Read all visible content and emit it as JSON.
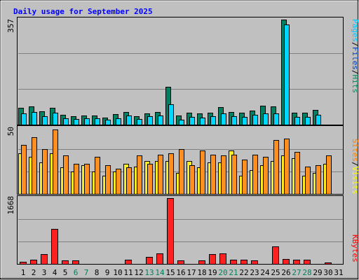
{
  "chart_data": {
    "type": "bar",
    "title": "Daily usage for September 2025",
    "days": [
      "1",
      "2",
      "3",
      "4",
      "5",
      "6",
      "7",
      "8",
      "9",
      "10",
      "11",
      "12",
      "13",
      "14",
      "15",
      "16",
      "17",
      "18",
      "19",
      "20",
      "21",
      "22",
      "23",
      "24",
      "25",
      "26",
      "27",
      "28",
      "29",
      "30",
      "31"
    ],
    "weekend_days": [
      "6",
      "7",
      "13",
      "14",
      "20",
      "21",
      "27",
      "28"
    ],
    "weekday_color": "#000000",
    "weekend_color": "#00805C",
    "panels": [
      {
        "id": "hits-panel",
        "max_label": "357",
        "ylim": [
          0,
          357
        ],
        "legend": [
          {
            "name": "Pages",
            "color": "#00C8FF"
          },
          {
            "name": "Files",
            "color": "#0040C0"
          },
          {
            "name": "Hits",
            "color": "#009060"
          }
        ],
        "series": [
          {
            "name": "Hits",
            "color": "#008060",
            "values": [
              57,
              62,
              46,
              58,
              33,
              28,
              32,
              30,
              23,
              35,
              42,
              29,
              38,
              43,
              128,
              30,
              40,
              39,
              40,
              60,
              42,
              41,
              47,
              65,
              63,
              357,
              40,
              40,
              50,
              0,
              0
            ]
          },
          {
            "name": "Files",
            "color": "#00D8FF",
            "values": [
              37,
              44,
              28,
              40,
              22,
              20,
              22,
              22,
              17,
              22,
              30,
              20,
              28,
              30,
              70,
              16,
              27,
              24,
              28,
              37,
              29,
              25,
              34,
              38,
              37,
              340,
              25,
              26,
              34,
              0,
              0
            ]
          }
        ]
      },
      {
        "id": "visits-panel",
        "max_label": "50",
        "ylim": [
          0,
          50
        ],
        "legend": [
          {
            "name": "Sites",
            "color": "#FF8000"
          },
          {
            "name": "Visits",
            "color": "#FFFF00"
          }
        ],
        "series": [
          {
            "name": "Sites",
            "color": "#FFEE20",
            "values": [
              31,
              28,
              24,
              31,
              20,
              17,
              22,
              17,
              14,
              17,
              23,
              21,
              25,
              25,
              25,
              16,
              25,
              20,
              24,
              24,
              33,
              14,
              18,
              22,
              25,
              29,
              27,
              14,
              16,
              23,
              0
            ]
          },
          {
            "name": "Visits",
            "color": "#FF9020",
            "values": [
              37,
              43,
              34,
              49,
              29,
              23,
              23,
              28,
              22,
              19,
              20,
              29,
              23,
              30,
              31,
              34,
              22,
              33,
              30,
              29,
              30,
              26,
              30,
              28,
              41,
              42,
              32,
              21,
              22,
              29,
              0
            ]
          }
        ]
      },
      {
        "id": "kbytes-panel",
        "max_label": "1668",
        "ylim": [
          0,
          1668
        ],
        "legend": [
          {
            "name": "KBytes",
            "color": "#FF0000"
          }
        ],
        "series": [
          {
            "name": "KBytes",
            "color": "#FF2020",
            "values": [
              50,
              100,
              240,
              890,
              80,
              80,
              0,
              0,
              0,
              0,
              100,
              0,
              180,
              270,
              1668,
              80,
              0,
              80,
              250,
              260,
              100,
              100,
              90,
              0,
              450,
              130,
              100,
              100,
              0,
              40,
              0
            ]
          }
        ]
      }
    ]
  }
}
